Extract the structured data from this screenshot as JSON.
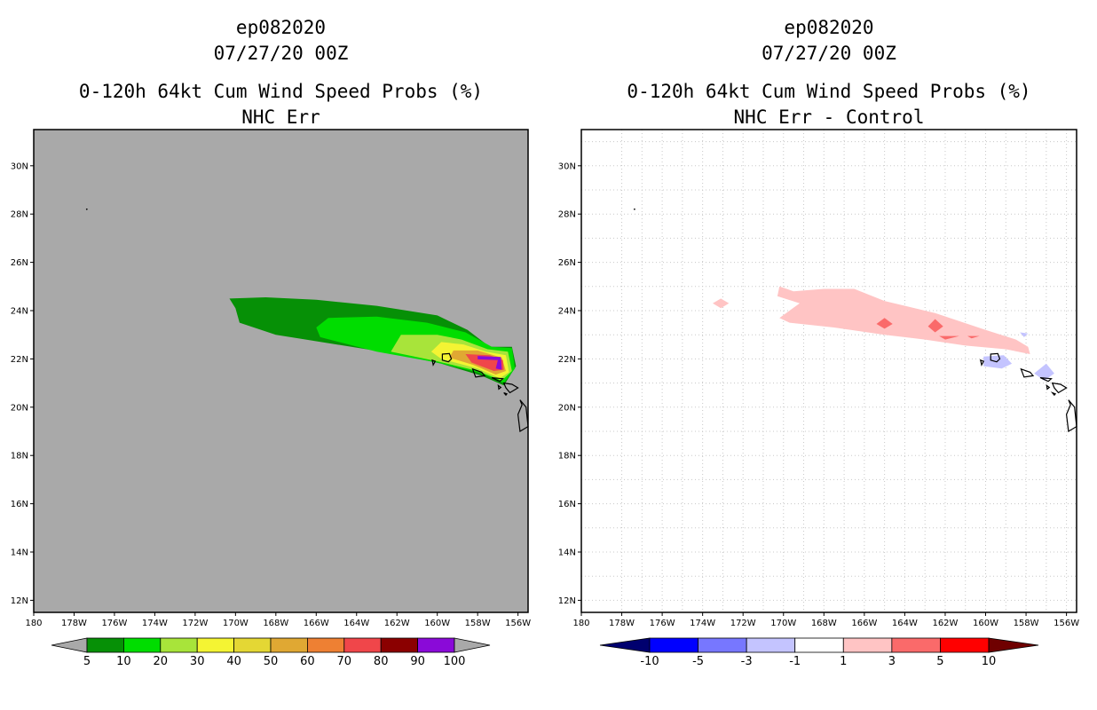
{
  "left_panel": {
    "title_line1": "ep082020",
    "title_line2": "07/27/20 00Z",
    "title_line3": "0-120h 64kt Cum Wind Speed Probs (%)",
    "title_line4": "NHC Err",
    "colorbar_labels": [
      "5",
      "10",
      "20",
      "30",
      "40",
      "50",
      "60",
      "70",
      "80",
      "90",
      "100"
    ],
    "colorbar_colors": [
      "#a9a9a9",
      "#069006",
      "#00dd00",
      "#a8e43a",
      "#f4f433",
      "#e4d734",
      "#e0a833",
      "#ee8033",
      "#f0464a",
      "#8b0000",
      "#8a0ad8",
      "#a9a9a9"
    ]
  },
  "right_panel": {
    "title_line1": "ep082020",
    "title_line2": "07/27/20 00Z",
    "title_line3": "0-120h 64kt Cum Wind Speed Probs (%)",
    "title_line4": "NHC Err - Control",
    "colorbar_labels": [
      "-10",
      "-5",
      "-3",
      "-1",
      "1",
      "3",
      "5",
      "10"
    ],
    "colorbar_colors": [
      "#00006f",
      "#0000ff",
      "#7777ff",
      "#c4c4ff",
      "#ffffff",
      "#ffc4c4",
      "#fa6a6a",
      "#ff0000",
      "#6f0000"
    ]
  },
  "map": {
    "lon_labels": [
      "180",
      "178W",
      "176W",
      "174W",
      "172W",
      "170W",
      "168W",
      "166W",
      "164W",
      "162W",
      "160W",
      "158W",
      "156W"
    ],
    "lat_labels": [
      "12N",
      "14N",
      "16N",
      "18N",
      "20N",
      "22N",
      "24N",
      "26N",
      "28N",
      "30N"
    ],
    "lon_range": [
      -180,
      -155.5
    ],
    "lat_range": [
      11.5,
      31.5
    ],
    "background_color": "#a9a9a9"
  }
}
